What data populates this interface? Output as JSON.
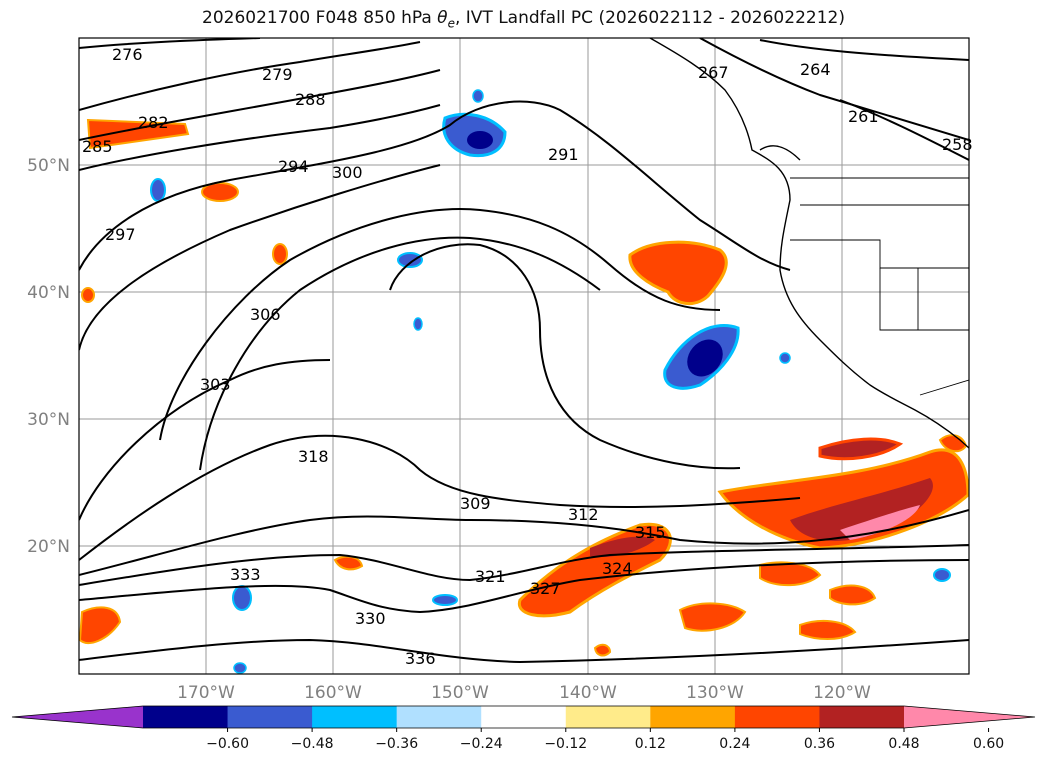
{
  "title_prefix": "2026021700 F048 850 hPa",
  "title_symbol": "θ",
  "title_subscript": "e",
  "title_suffix": ", IVT Landfall PC (2026022112 - 2026022212)",
  "lat_labels": [
    "50°N",
    "40°N",
    "30°N",
    "20°N"
  ],
  "lon_labels": [
    "170°W",
    "160°W",
    "150°W",
    "140°W",
    "130°W",
    "120°W"
  ],
  "colorbar": {
    "colors": [
      "#9933cc",
      "#00008b",
      "#3a5bd0",
      "#00bfff",
      "#b0e0ff",
      "#ffffff",
      "#ffeb8a",
      "#ffa500",
      "#ff4500",
      "#b22222",
      "#ff88aa"
    ],
    "ticks": [
      "−0.60",
      "−0.48",
      "−0.36",
      "−0.24",
      "−0.12",
      "0.12",
      "0.24",
      "0.36",
      "0.48",
      "0.60"
    ]
  },
  "contour_labels": [
    "276",
    "279",
    "282",
    "285",
    "288",
    "291",
    "294",
    "297",
    "300",
    "303",
    "306",
    "309",
    "312",
    "315",
    "318",
    "321",
    "324",
    "327",
    "330",
    "333",
    "336",
    "264",
    "267",
    "258",
    "261"
  ]
}
